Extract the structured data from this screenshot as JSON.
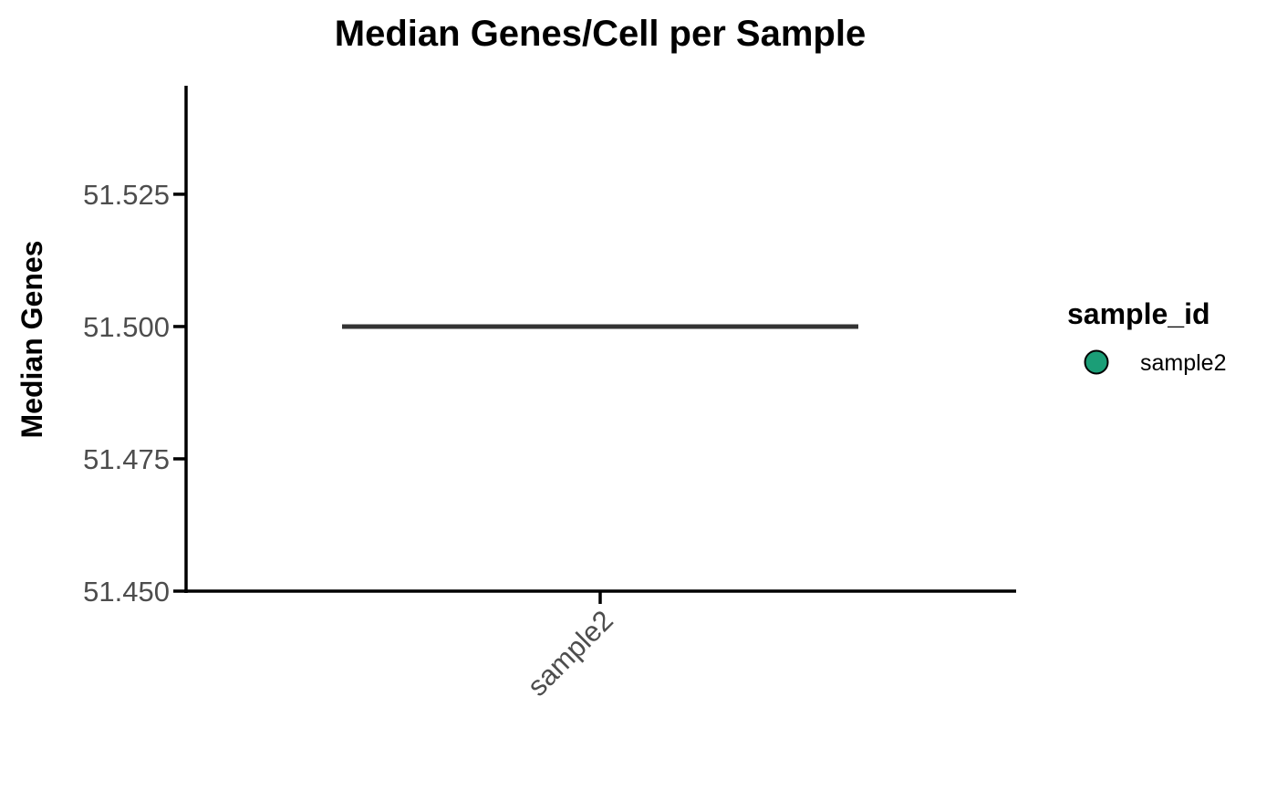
{
  "chart_data": {
    "type": "scatter",
    "title": "Median Genes/Cell per Sample",
    "xlabel": "",
    "ylabel": "Median Genes",
    "categories": [
      "sample2"
    ],
    "y_ticks": [
      51.45,
      51.475,
      51.5,
      51.525
    ],
    "y_tick_labels": [
      "51.450",
      "51.475",
      "51.500",
      "51.525"
    ],
    "ylim": [
      51.45,
      51.5455
    ],
    "grid": false,
    "series": [
      {
        "name": "sample2",
        "color": "#1b9e77",
        "values": [
          51.5
        ]
      }
    ],
    "median_line": {
      "category": "sample2",
      "value": 51.5,
      "color": "#333333"
    },
    "legend": {
      "title": "sample_id",
      "position": "right",
      "entries": [
        {
          "label": "sample2",
          "color": "#1b9e77",
          "marker": "circle"
        }
      ]
    }
  }
}
